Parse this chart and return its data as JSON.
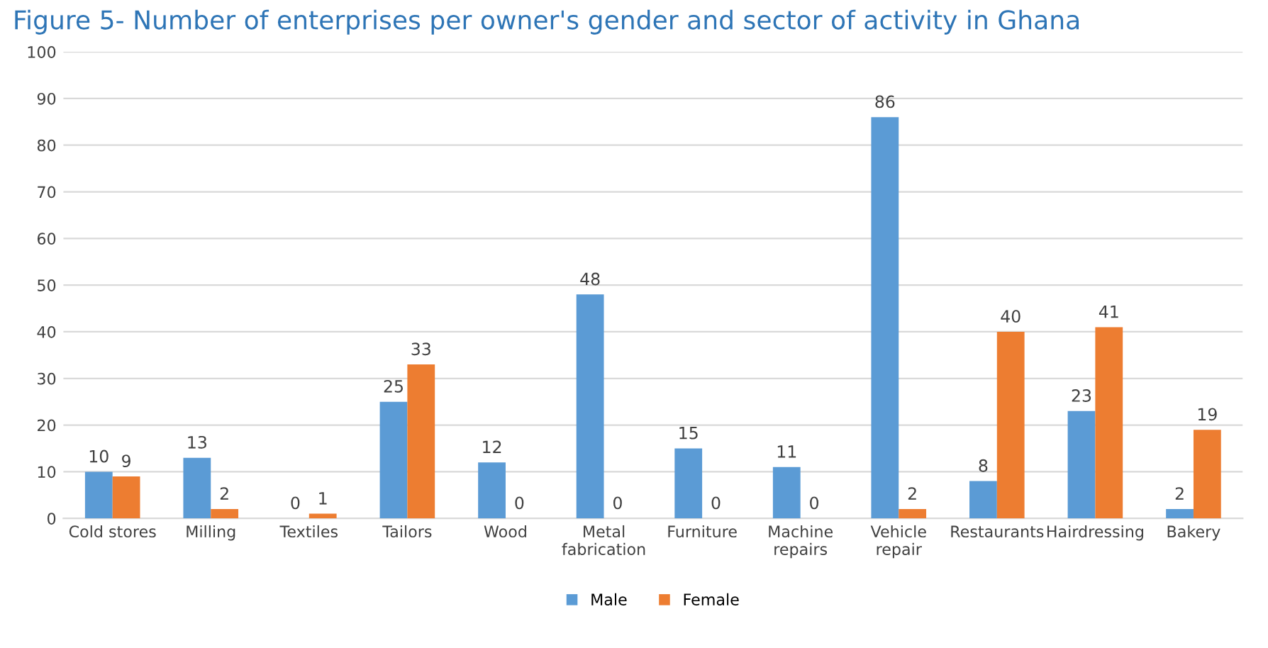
{
  "chart_data": {
    "type": "bar",
    "title": "Figure 5- Number of enterprises per owner's gender and sector of activity in Ghana",
    "categories": [
      "Cold stores",
      "Milling",
      "Textiles",
      "Tailors",
      "Wood",
      "Metal\nfabrication",
      "Furniture",
      "Machine\nrepairs",
      "Vehicle\nrepair",
      "Restaurants",
      "Hairdressing",
      "Bakery"
    ],
    "series": [
      {
        "name": "Male",
        "color": "#5b9bd5",
        "values": [
          10,
          13,
          0,
          25,
          12,
          48,
          15,
          11,
          86,
          8,
          23,
          2
        ]
      },
      {
        "name": "Female",
        "color": "#ed7d31",
        "values": [
          9,
          2,
          1,
          33,
          0,
          0,
          0,
          0,
          2,
          40,
          41,
          19
        ]
      }
    ],
    "ylim": [
      0,
      100
    ],
    "yticks": [
      0,
      10,
      20,
      30,
      40,
      50,
      60,
      70,
      80,
      90,
      100
    ],
    "grid": "y",
    "legend": "bottom",
    "data_labels": true
  }
}
